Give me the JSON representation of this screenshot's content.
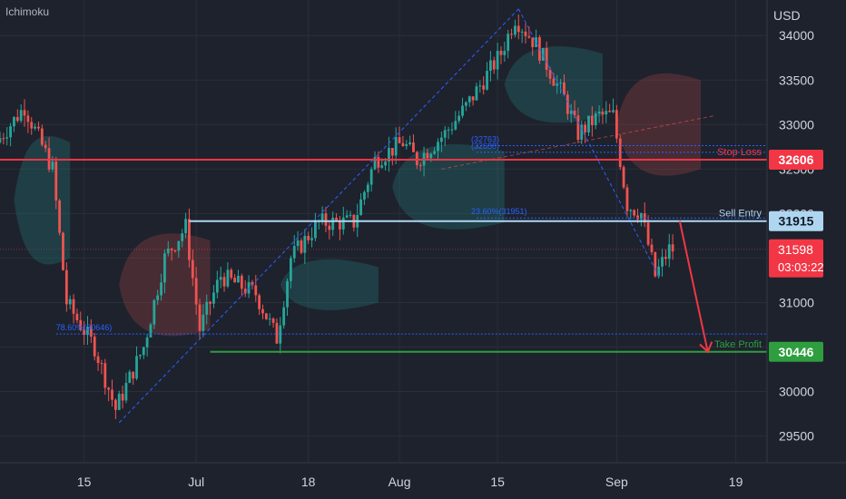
{
  "indicator": "Ichimoku",
  "currency": "USD",
  "colors": {
    "background": "#1e222d",
    "grid": "#2a2e39",
    "candle_up": "#26a69a",
    "candle_down": "#ef5350",
    "stop_loss": "#f23645",
    "sell_entry": "#aed6f1",
    "take_profit": "#2e9e3e",
    "current_price": "#f23645",
    "fib": "#2962ff",
    "arrow": "#f23645"
  },
  "chart_data": {
    "type": "candlestick",
    "x_ticks": [
      "15",
      "Jul",
      "18",
      "Aug",
      "15",
      "Sep",
      "19"
    ],
    "y_ticks": [
      29500,
      30000,
      30500,
      31000,
      31500,
      32000,
      32500,
      33000,
      33500,
      34000
    ],
    "ylim": [
      29200,
      34400
    ],
    "grid": true,
    "path_points": [
      {
        "day": 0,
        "price": 32800
      },
      {
        "day": 4,
        "price": 33200
      },
      {
        "day": 8,
        "price": 32500
      },
      {
        "day": 10,
        "price": 31000
      },
      {
        "day": 14,
        "price": 30500
      },
      {
        "day": 17,
        "price": 29800
      },
      {
        "day": 21,
        "price": 30500
      },
      {
        "day": 24,
        "price": 31500
      },
      {
        "day": 27,
        "price": 31850
      },
      {
        "day": 29,
        "price": 30700
      },
      {
        "day": 32,
        "price": 31300
      },
      {
        "day": 37,
        "price": 31100
      },
      {
        "day": 40,
        "price": 30600
      },
      {
        "day": 42,
        "price": 31500
      },
      {
        "day": 46,
        "price": 31900
      },
      {
        "day": 51,
        "price": 31900
      },
      {
        "day": 54,
        "price": 32600
      },
      {
        "day": 58,
        "price": 32800
      },
      {
        "day": 60,
        "price": 32600
      },
      {
        "day": 64,
        "price": 32900
      },
      {
        "day": 67,
        "price": 33200
      },
      {
        "day": 72,
        "price": 33800
      },
      {
        "day": 74,
        "price": 34200
      },
      {
        "day": 77,
        "price": 33900
      },
      {
        "day": 81,
        "price": 33300
      },
      {
        "day": 83,
        "price": 32900
      },
      {
        "day": 86,
        "price": 33100
      },
      {
        "day": 88,
        "price": 33100
      },
      {
        "day": 90,
        "price": 32100
      },
      {
        "day": 92,
        "price": 32000
      },
      {
        "day": 94,
        "price": 31300
      },
      {
        "day": 96,
        "price": 31598
      }
    ],
    "trendline_segments": [
      {
        "from": {
          "day": 17,
          "price": 29650
        },
        "to": {
          "day": 74,
          "price": 34300
        }
      },
      {
        "from": {
          "day": 74,
          "price": 34300
        },
        "to": {
          "day": 94,
          "price": 31300
        }
      },
      {
        "from": {
          "day": 63,
          "price": 32500
        },
        "to": {
          "day": 102,
          "price": 33100
        }
      }
    ],
    "levels": [
      {
        "name": "stop-loss",
        "label": "Stop Loss",
        "value": 32606,
        "price_tag": "32606",
        "from_day": 0
      },
      {
        "name": "sell-entry",
        "label": "Sell Entry",
        "value": 31915,
        "price_tag": "31915",
        "from_day": 27
      },
      {
        "name": "take-profit",
        "label": "Take Profit",
        "value": 30446,
        "price_tag": "30446",
        "from_day": 30
      }
    ],
    "fib_labels": [
      {
        "label": "78.60%(30646)",
        "value": 30646,
        "day": 8
      },
      {
        "label": "23.60%(31951)",
        "value": 31951,
        "day": 68
      },
      {
        "label": "(32763)",
        "value": 32763,
        "day": 68
      },
      {
        "label": "(32688)",
        "value": 32688,
        "day": 68
      }
    ],
    "current_price": {
      "value": 31598,
      "label": "31598",
      "countdown": "03:03:22"
    },
    "projection_arrow": {
      "from": {
        "day": 97,
        "price": 31915
      },
      "to": {
        "day": 101,
        "price": 30446
      }
    },
    "cloud_segments": [
      {
        "start_day": 2,
        "end_day": 10,
        "top": 32900,
        "bottom": 31400,
        "bullish": true
      },
      {
        "start_day": 17,
        "end_day": 30,
        "top": 31800,
        "bottom": 30600,
        "bullish": false
      },
      {
        "start_day": 40,
        "end_day": 54,
        "top": 31500,
        "bottom": 30900,
        "bullish": true
      },
      {
        "start_day": 56,
        "end_day": 72,
        "top": 32800,
        "bottom": 31800,
        "bullish": true
      },
      {
        "start_day": 72,
        "end_day": 86,
        "top": 33900,
        "bottom": 33000,
        "bullish": true
      },
      {
        "start_day": 88,
        "end_day": 100,
        "top": 33600,
        "bottom": 32400,
        "bullish": false
      }
    ]
  }
}
